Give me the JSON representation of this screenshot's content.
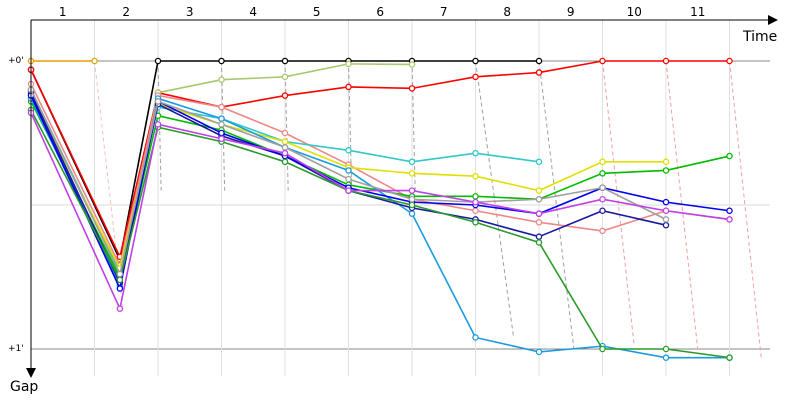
{
  "chart_data": {
    "type": "line",
    "xlabel": "Time",
    "ylabel": "Gap",
    "x_tick_labels": [
      "1",
      "2",
      "3",
      "4",
      "5",
      "6",
      "7",
      "8",
      "9",
      "10",
      "11"
    ],
    "y_tick_labels": [
      "+0'",
      "+1'"
    ],
    "ylim": [
      0,
      1
    ],
    "grid": true,
    "reference_lines": [
      {
        "color": "#cccccc",
        "points": [
          [
            0,
            0
          ],
          [
            1,
            0
          ]
        ]
      },
      {
        "color": "#f4c0c0",
        "points": [
          [
            1,
            0
          ],
          [
            1.45,
            0.87
          ]
        ]
      },
      {
        "color": "#a0a0a0",
        "points": [
          [
            2,
            0
          ],
          [
            2.05,
            0.45
          ]
        ]
      },
      {
        "color": "#a0a0a0",
        "points": [
          [
            3,
            0
          ],
          [
            3.05,
            0.45
          ]
        ]
      },
      {
        "color": "#a0a0a0",
        "points": [
          [
            4,
            0
          ],
          [
            4.05,
            0.45
          ]
        ]
      },
      {
        "color": "#a0a0a0",
        "points": [
          [
            5,
            0
          ],
          [
            5.05,
            0.45
          ]
        ]
      },
      {
        "color": "#a0a0a0",
        "points": [
          [
            6,
            0
          ],
          [
            6.05,
            0.45
          ]
        ]
      },
      {
        "color": "#a0a0a0",
        "points": [
          [
            7,
            0
          ],
          [
            7.6,
            0.96
          ]
        ]
      },
      {
        "color": "#a0a0a0",
        "points": [
          [
            8,
            0
          ],
          [
            8.55,
            1.0
          ]
        ]
      },
      {
        "color": "#f4a0a0",
        "points": [
          [
            9,
            0
          ],
          [
            9.5,
            0.99
          ]
        ]
      },
      {
        "color": "#f4a0a0",
        "points": [
          [
            10,
            0
          ],
          [
            10.5,
            1.0
          ]
        ]
      },
      {
        "color": "#f4a0a0",
        "points": [
          [
            11,
            0
          ],
          [
            11.5,
            1.03
          ]
        ]
      }
    ],
    "series": [
      {
        "color": "#000000",
        "x": [
          0,
          1.4,
          2,
          3,
          4,
          5,
          6,
          7,
          8
        ],
        "y": [
          0.03,
          0.69,
          0,
          0,
          0,
          0,
          0,
          0,
          0
        ]
      },
      {
        "color": "#e8a000",
        "x": [
          0,
          1
        ],
        "y": [
          0,
          0
        ]
      },
      {
        "color": "#ff0000",
        "x": [
          0,
          1.4,
          2,
          3,
          4,
          5,
          6,
          7,
          8,
          9,
          10,
          11
        ],
        "y": [
          0.03,
          0.68,
          0.11,
          0.16,
          0.12,
          0.09,
          0.095,
          0.055,
          0.04,
          0,
          0,
          0
        ]
      },
      {
        "color": "#a8c870",
        "x": [
          0,
          1.4,
          2,
          3,
          4,
          5,
          6
        ],
        "y": [
          0.1,
          0.74,
          0.11,
          0.065,
          0.055,
          0.01,
          0.012
        ]
      },
      {
        "color": "#ee8888",
        "x": [
          0,
          1.4,
          2,
          3,
          4,
          5,
          6,
          7,
          8,
          9,
          10,
          11
        ],
        "y": [
          0.08,
          0.71,
          0.12,
          0.16,
          0.25,
          0.36,
          0.48,
          0.52,
          0.56,
          0.59,
          0.52,
          0.55
        ]
      },
      {
        "color": "#30c8c8",
        "x": [
          0,
          1.4,
          2,
          3,
          4,
          5,
          6,
          7,
          8
        ],
        "y": [
          0.1,
          0.73,
          0.16,
          0.2,
          0.28,
          0.31,
          0.35,
          0.32,
          0.35
        ]
      },
      {
        "color": "#e0e000",
        "x": [
          0,
          1.4,
          2,
          3,
          4,
          5,
          6,
          7,
          8,
          9,
          10
        ],
        "y": [
          0.12,
          0.72,
          0.15,
          0.22,
          0.28,
          0.37,
          0.39,
          0.4,
          0.45,
          0.35,
          0.35
        ]
      },
      {
        "color": "#00bb00",
        "x": [
          0,
          1.4,
          2,
          3,
          4,
          5,
          6,
          7,
          8,
          9,
          10,
          11
        ],
        "y": [
          0.14,
          0.75,
          0.19,
          0.24,
          0.33,
          0.43,
          0.47,
          0.47,
          0.48,
          0.39,
          0.38,
          0.33
        ]
      },
      {
        "color": "#1a9be0",
        "x": [
          0,
          1.4,
          2,
          3,
          4,
          5,
          6,
          7,
          8,
          9,
          10,
          11
        ],
        "y": [
          0.13,
          0.78,
          0.13,
          0.2,
          0.3,
          0.38,
          0.53,
          0.96,
          1.01,
          0.99,
          1.03,
          1.03
        ]
      },
      {
        "color": "#1a1aa0",
        "x": [
          0,
          1.4,
          2,
          3,
          4,
          5,
          6,
          7,
          8,
          9,
          10
        ],
        "y": [
          0.11,
          0.77,
          0.15,
          0.26,
          0.33,
          0.45,
          0.51,
          0.55,
          0.61,
          0.52,
          0.57
        ]
      },
      {
        "color": "#0000ee",
        "x": [
          0,
          1.4,
          2,
          3,
          4,
          5,
          6,
          7,
          8,
          9,
          10,
          11
        ],
        "y": [
          0.12,
          0.79,
          0.14,
          0.25,
          0.33,
          0.44,
          0.49,
          0.5,
          0.53,
          0.44,
          0.49,
          0.52
        ]
      },
      {
        "color": "#2a9a2a",
        "x": [
          0,
          1.4,
          2,
          3,
          4,
          5,
          6,
          7,
          8,
          9,
          10,
          11
        ],
        "y": [
          0.17,
          0.76,
          0.23,
          0.28,
          0.35,
          0.45,
          0.5,
          0.56,
          0.63,
          1.0,
          1.0,
          1.03
        ]
      },
      {
        "color": "#a0a0a0",
        "x": [
          0,
          1.4,
          2,
          3,
          4,
          5,
          6,
          7,
          8,
          9,
          10
        ],
        "y": [
          0.1,
          0.74,
          0.14,
          0.22,
          0.3,
          0.41,
          0.48,
          0.49,
          0.48,
          0.44,
          0.55
        ]
      },
      {
        "color": "#c040e8",
        "x": [
          0,
          1.4,
          2,
          3,
          4,
          5,
          6,
          7,
          8,
          9,
          10,
          11
        ],
        "y": [
          0.18,
          0.86,
          0.22,
          0.27,
          0.32,
          0.45,
          0.45,
          0.49,
          0.53,
          0.48,
          0.52,
          0.55
        ]
      }
    ]
  }
}
